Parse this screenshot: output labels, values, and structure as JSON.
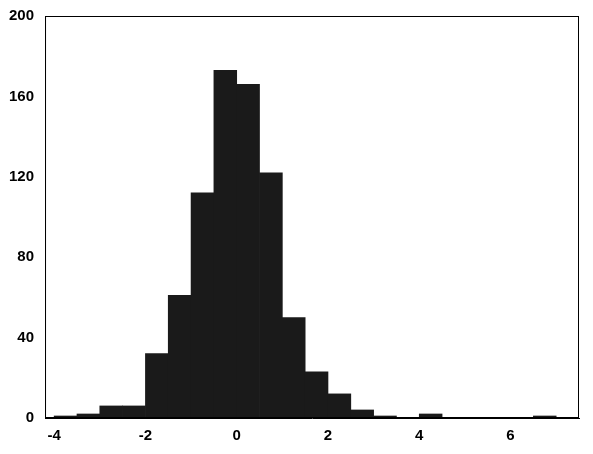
{
  "chart_data": {
    "type": "histogram",
    "bins": [
      -4,
      -3.5,
      -3,
      -2.5,
      -2,
      -1.5,
      -1,
      -0.5,
      0,
      0.5,
      1,
      1.5,
      2,
      2.5,
      3,
      3.5,
      4,
      4.5,
      5,
      5.5,
      6,
      6.5,
      7
    ],
    "values": [
      1,
      2,
      6,
      6,
      32,
      61,
      112,
      173,
      166,
      122,
      50,
      23,
      12,
      4,
      1,
      0,
      2,
      0,
      0,
      0,
      0,
      1
    ],
    "color": "#1a1a1a",
    "xlim": [
      -4.2,
      7.5
    ],
    "xticks": [
      -4,
      -2,
      0,
      2,
      4,
      6
    ],
    "ylim": [
      0,
      200
    ],
    "yticks": [
      0,
      40,
      80,
      120,
      160,
      200
    ],
    "grid": false
  }
}
